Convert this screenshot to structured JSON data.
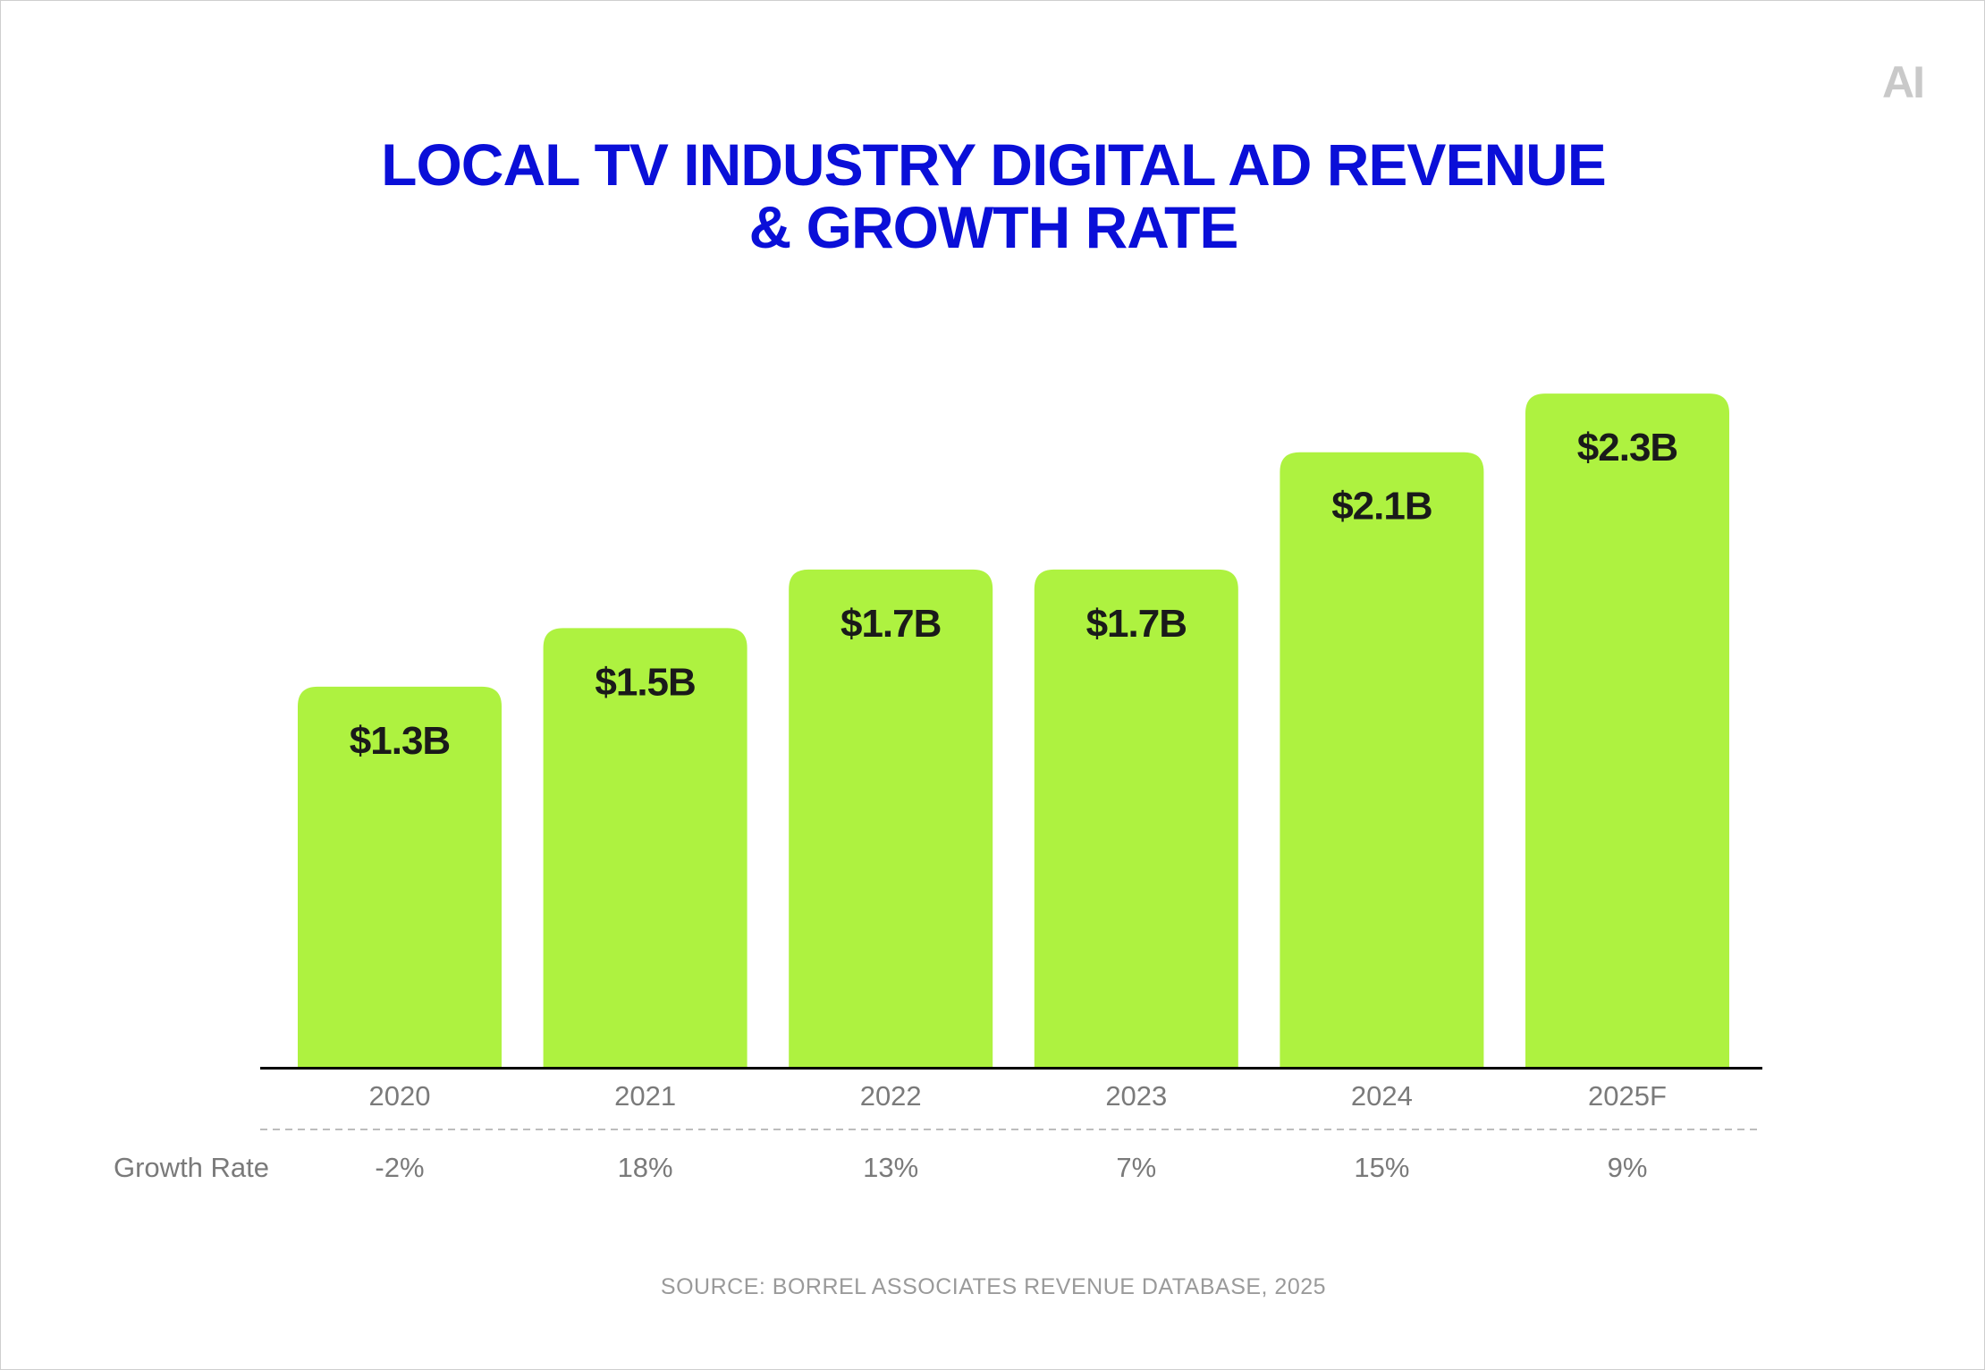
{
  "brand": {
    "logo_text": "AI"
  },
  "chart_data": {
    "type": "bar",
    "title": [
      "LOCAL TV INDUSTRY DIGITAL AD REVENUE",
      "& GROWTH RATE"
    ],
    "categories": [
      "2020",
      "2021",
      "2022",
      "2023",
      "2024",
      "2025F"
    ],
    "values": [
      1.3,
      1.5,
      1.7,
      1.7,
      2.1,
      2.3
    ],
    "value_labels": [
      "$1.3B",
      "$1.5B",
      "$1.7B",
      "$1.7B",
      "$2.1B",
      "$2.3B"
    ],
    "unit": "$B",
    "growth_rate": {
      "label": "Growth Rate",
      "values": [
        "-2%",
        "18%",
        "13%",
        "7%",
        "15%",
        "9%"
      ]
    },
    "ylim": [
      0,
      2.45
    ],
    "grid": false,
    "legend": "none",
    "colors": {
      "bar": "#aef240",
      "title": "#0a0fd8",
      "value_label": "#1a1a1a",
      "category_label": "#7a7a7a",
      "axis": "#000000"
    }
  },
  "source": "SOURCE: BORREL ASSOCIATES REVENUE DATABASE, 2025"
}
